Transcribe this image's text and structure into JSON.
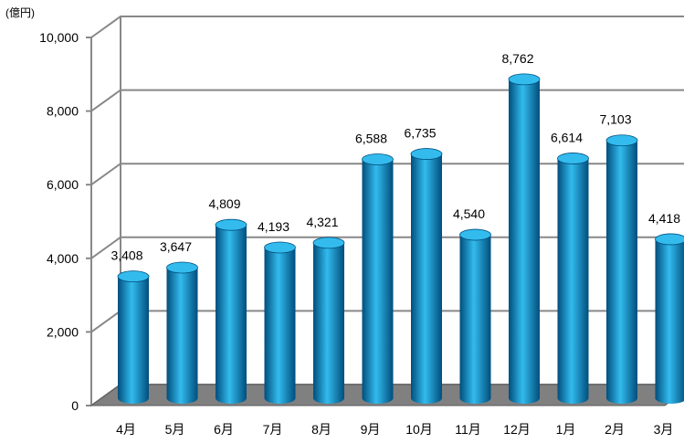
{
  "chart_data": {
    "type": "bar",
    "style": "3d-cylinder",
    "unit_label": "(億円)",
    "categories": [
      "4月",
      "5月",
      "6月",
      "7月",
      "8月",
      "9月",
      "10月",
      "11月",
      "12月",
      "1月",
      "2月",
      "3月"
    ],
    "values": [
      3408,
      3647,
      4809,
      4193,
      4321,
      6588,
      6735,
      4540,
      8762,
      6614,
      7103,
      4418
    ],
    "value_labels": [
      "3,408",
      "3,647",
      "4,809",
      "4,193",
      "4,321",
      "6,588",
      "6,735",
      "4,540",
      "8,762",
      "6,614",
      "7,103",
      "4,418"
    ],
    "ylim": [
      0,
      10000
    ],
    "yticks": [
      0,
      2000,
      4000,
      6000,
      8000,
      10000
    ],
    "ytick_labels": [
      "0",
      "2,000",
      "4,000",
      "6,000",
      "8,000",
      "10,000"
    ],
    "grid": true,
    "colors": {
      "bar_body": "#00A0E0",
      "bar_dark": "#004E7C",
      "bar_top": "#33BBEE",
      "floor": "#808080",
      "floor_edge": "#5a5a5a",
      "grid": "#888888"
    }
  }
}
